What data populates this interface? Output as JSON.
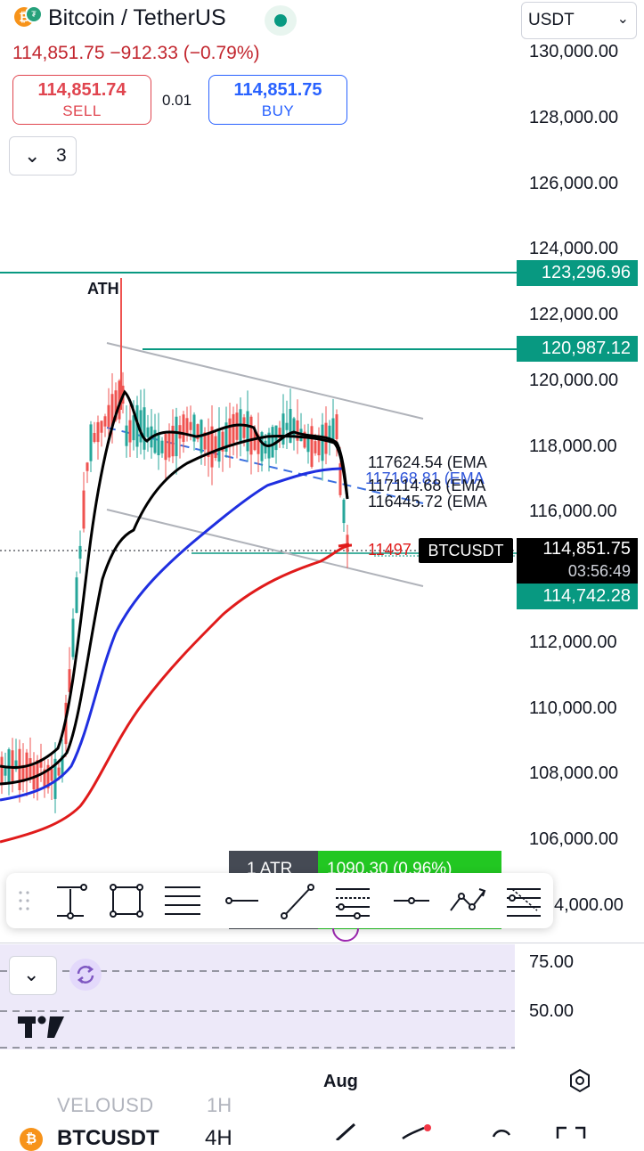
{
  "header": {
    "coin_glyph": "₿",
    "badge_glyph": "₮",
    "title": "Bitcoin / TetherUS",
    "quote": "114,851.75 −912.33 (−0.79%)",
    "status_color": "#089981"
  },
  "trade": {
    "sell_price": "114,851.74",
    "sell_label": "SELL",
    "buy_price": "114,851.75",
    "buy_label": "BUY",
    "lot": "0.01"
  },
  "indicators_toggle": {
    "count": "3"
  },
  "currency_select": {
    "value": "USDT"
  },
  "price_axis": {
    "ticks": [
      "130,000.00",
      "128,000.00",
      "126,000.00",
      "124,000.00",
      "122,000.00",
      "120,000.00",
      "118,000.00",
      "116,000.00",
      "112,000.00",
      "110,000.00",
      "108,000.00",
      "106,000.00",
      "4,000.00"
    ]
  },
  "levels": {
    "ath_level": "123,296.96",
    "resistance_level": "120,987.12",
    "current_price": "114,851.75",
    "countdown": "03:56:49",
    "support_level": "114,742.28",
    "symbol_tag": "BTCUSDT",
    "ma_red_partial": "11497"
  },
  "ema_labels": {
    "ema1": "117624.54 (EMA",
    "ema2": "117168.81 (EMA",
    "ema3": "117114.68 (EMA",
    "ema4": "116445.72 (EMA"
  },
  "annotations": {
    "ath": "ATH"
  },
  "atr": {
    "label": "1 ATR",
    "value": "1090.30 (0.96%)"
  },
  "drawing_toolbar": {
    "tools": [
      "vertical-range-icon",
      "rectangle-icon",
      "parallel-lines-icon",
      "horizontal-ray-icon",
      "trend-line-icon",
      "fib-retracement-icon",
      "horizontal-line-icon",
      "path-icon",
      "gann-fan-icon"
    ]
  },
  "oscillator": {
    "ticks": [
      "75.00",
      "50.00"
    ]
  },
  "time_axis": {
    "label": "Aug"
  },
  "bottom_bar": {
    "watch_symbol": "VELOUSD",
    "watch_interval": "1H",
    "symbol": "BTCUSDT",
    "interval": "4H"
  },
  "colors": {
    "up": "#26a69a",
    "down": "#ef5350",
    "teal_level": "#089981",
    "ema_blue": "#1f2fe0",
    "ema_red": "#e01b1b",
    "ema_black": "#000000"
  }
}
